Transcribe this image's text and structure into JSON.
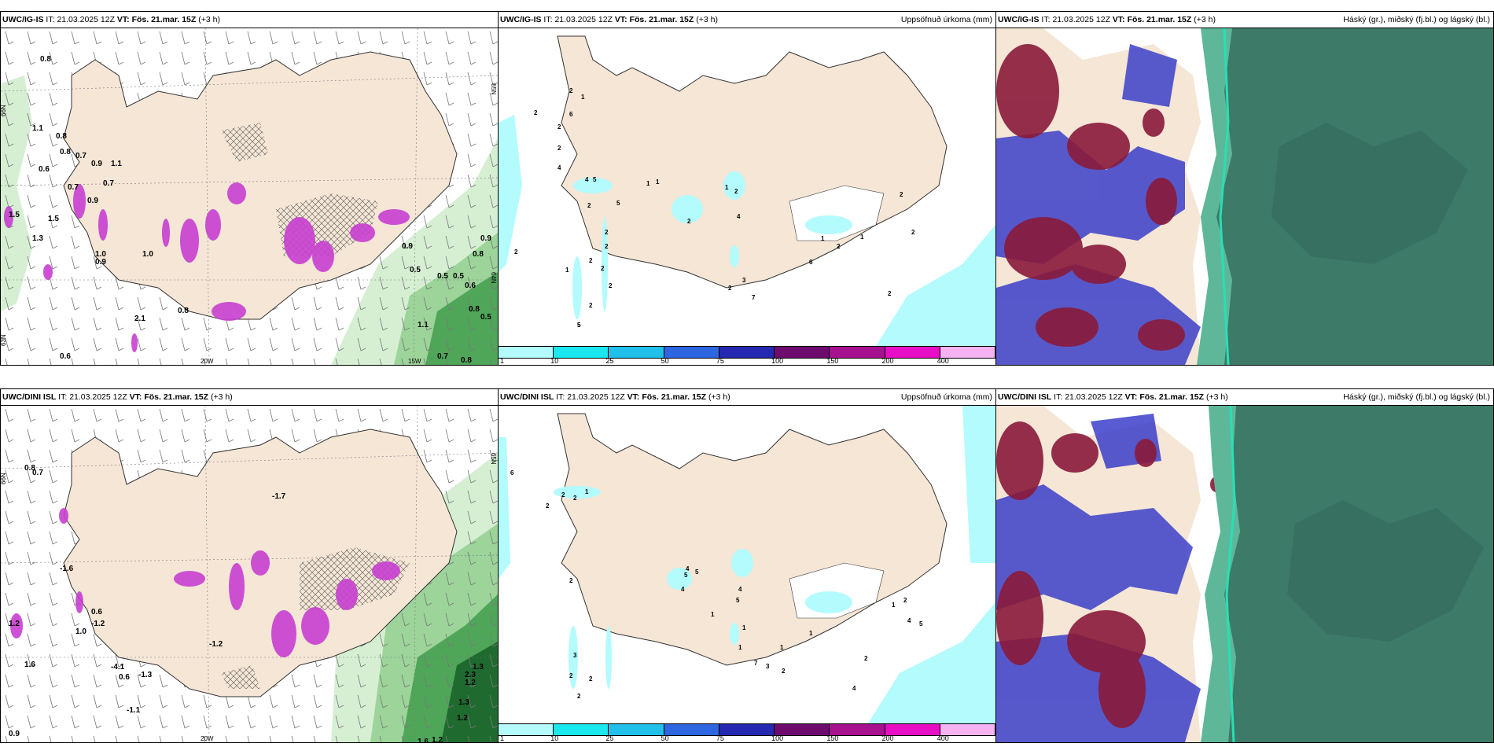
{
  "rows": [
    {
      "model": "UWC/IG-IS",
      "it_label": "IT:",
      "it": "21.03.2025 12Z",
      "vt_label": "VT:",
      "vt": "Fös. 21.mar. 15Z",
      "step": "(+3 h)",
      "wind_values": [
        "0.8",
        "1.1",
        "0.8",
        "0.7",
        "0.6",
        "0.7",
        "0.9",
        "1.1",
        "0.7",
        "1.0",
        "0.9",
        "1.5",
        "1.3",
        "1.0",
        "0.8",
        "0.9",
        "0.6",
        "2.1",
        "0.8",
        "1.5",
        "0.9",
        "0.5",
        "0.5",
        "0.5",
        "0.8",
        "0.9",
        "0.8",
        "1.1",
        "0.7",
        "0.8",
        "0.6",
        "0.5"
      ],
      "precip_values": [
        "2",
        "2",
        "6",
        "1",
        "2",
        "2",
        "4",
        "5",
        "4",
        "1",
        "1",
        "2",
        "2",
        "2",
        "2",
        "1",
        "2",
        "2",
        "2",
        "2",
        "5",
        "5",
        "2",
        "1",
        "2",
        "4",
        "5",
        "2",
        "3",
        "7",
        "6",
        "1",
        "2",
        "1",
        "2",
        "2",
        "2"
      ]
    },
    {
      "model": "UWC/DINI ISL",
      "it_label": "IT:",
      "it": "21.03.2025 12Z",
      "vt_label": "VT:",
      "vt": "Fös. 21.mar. 15Z",
      "step": "(+3 h)",
      "wind_values": [
        "0.8",
        "0.7",
        "-1.7",
        "-1.6",
        "1.2",
        "1.0",
        "1.6",
        "-4.1",
        "-1.3",
        "-1.2",
        "0.6",
        "-1.2",
        "1.3",
        "1.2",
        "1.2",
        "1.6",
        "1.2",
        "0.9",
        "1.3",
        "2.3",
        "0.6",
        "-1.1"
      ],
      "precip_values": [
        "6",
        "2",
        "2",
        "2",
        "1",
        "2",
        "3",
        "2",
        "2",
        "2",
        "5",
        "4",
        "5",
        "4",
        "4",
        "5",
        "1",
        "1",
        "1",
        "7",
        "3",
        "1",
        "2",
        "1",
        "1",
        "2",
        "4",
        "5",
        "2",
        "4"
      ]
    }
  ],
  "precip_title": "Uppsöfnuð úrkoma (mm)",
  "cloud_title": "Háský (gr.), miðský (fj.bl.) og lágský (bl.)",
  "lat_lon_labels": {
    "lat66": "66N",
    "lat65": "65N",
    "lat64": "64N",
    "lat63": "63N",
    "lon20": "20W",
    "lon15": "15W"
  },
  "legend": {
    "colors": [
      "#b3fbfd",
      "#1ae7ee",
      "#20c0ea",
      "#2d66e0",
      "#2528b0",
      "#6e0b6e",
      "#a7108e",
      "#e80ec6",
      "#f6b3f2"
    ],
    "labels": [
      "1",
      "10",
      "25",
      "50",
      "75",
      "100",
      "150",
      "200",
      "400"
    ]
  }
}
